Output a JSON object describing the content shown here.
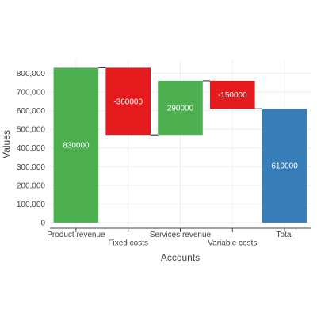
{
  "chart_data": {
    "type": "waterfall",
    "xlabel": "Accounts",
    "ylabel": "Values",
    "ylim": [
      -30000,
      870000
    ],
    "yticks": [
      0,
      100000,
      200000,
      300000,
      400000,
      500000,
      600000,
      700000,
      800000
    ],
    "ytick_labels": [
      "0",
      "100,000",
      "200,000",
      "300,000",
      "400,000",
      "500,000",
      "600,000",
      "700,000",
      "800,000"
    ],
    "grid": true,
    "categories": [
      "Product revenue",
      "Fixed costs",
      "Services revenue",
      "Variable costs",
      "Total"
    ],
    "values": [
      830000,
      -360000,
      290000,
      -150000,
      610000
    ],
    "measures": [
      "relative",
      "relative",
      "relative",
      "relative",
      "total"
    ],
    "text": [
      "830000",
      "-360000",
      "290000",
      "-150000",
      "610000"
    ],
    "colors": {
      "increasing": "#4caf50",
      "decreasing": "#e41a1c",
      "total": "#377eb8",
      "connector": "#444444"
    }
  }
}
